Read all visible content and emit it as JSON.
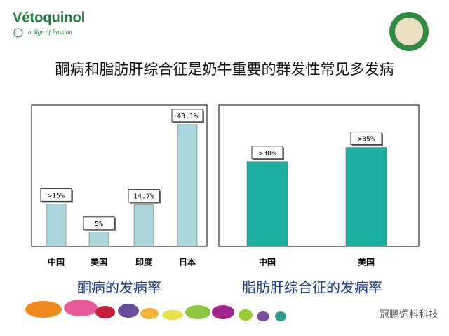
{
  "logo": "Vétoquinol",
  "tagline": "a Sign of Passion",
  "title": "酮病和脂肪肝综合征是奶牛重要的群发性常见多发病",
  "watermark": "冠鹏饲料科技",
  "chart_data": [
    {
      "type": "bar",
      "title": "酮病的发病率",
      "categories": [
        "中国",
        "美国",
        "印度",
        "日本"
      ],
      "values": [
        15,
        5,
        14.7,
        43.1
      ],
      "value_labels": [
        ">15%",
        "5%",
        "14.7%",
        "43.1%"
      ],
      "color": "#a9d5dc",
      "ylim": [
        0,
        50
      ]
    },
    {
      "type": "bar",
      "title": "脂肪肝综合征的发病率",
      "categories": [
        "中国",
        "美国"
      ],
      "values": [
        30,
        35
      ],
      "value_labels": [
        ">30%",
        ">35%"
      ],
      "color": "#1cb0a2",
      "ylim": [
        0,
        50
      ]
    }
  ]
}
